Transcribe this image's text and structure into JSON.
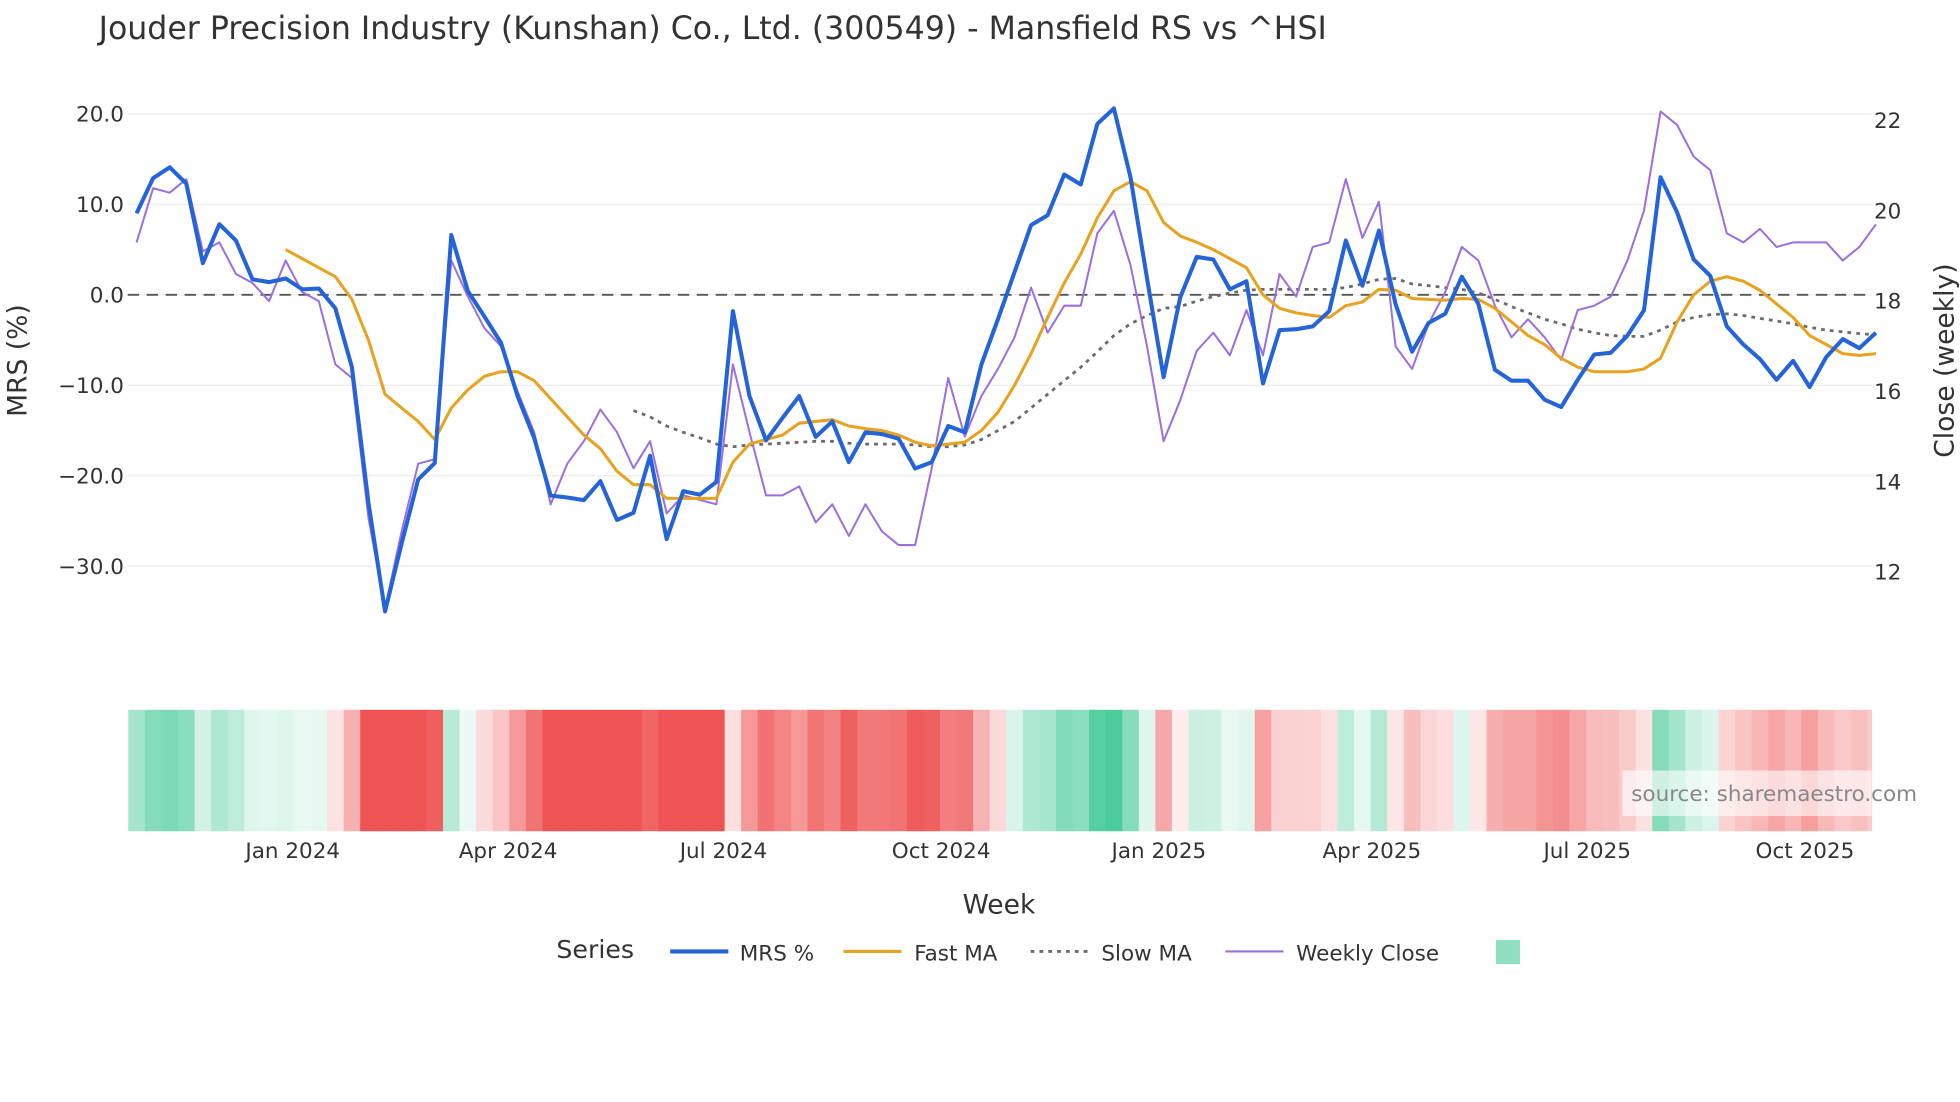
{
  "chart_data": {
    "type": "line",
    "title": "Jouder Precision Industry (Kunshan) Co., Ltd. (300549) - Mansfield RS vs ^HSI",
    "xlabel": "Week",
    "ylabel": "MRS (%)",
    "y2label": "Close (weekly)",
    "x_start": "2023-10-27",
    "x_frequency": "weekly",
    "x_ticks": [
      "Jan 2024",
      "Apr 2024",
      "Jul 2024",
      "Oct 2024",
      "Jan 2025",
      "Apr 2025",
      "Jul 2025",
      "Oct 2025"
    ],
    "x_tick_dates": [
      "2024-01-01",
      "2024-04-01",
      "2024-07-01",
      "2024-10-01",
      "2025-01-01",
      "2025-04-01",
      "2025-07-01",
      "2025-10-01"
    ],
    "ylim": [
      -35,
      20
    ],
    "y_ticks": [
      20,
      10,
      0,
      -10,
      -20,
      -30
    ],
    "y_tick_labels": [
      "20.0",
      "10.0",
      "0.0",
      "−10.0",
      "−20.0",
      "−30.0"
    ],
    "y2lim": [
      11,
      22.2
    ],
    "y2_ticks": [
      22,
      20,
      18,
      16,
      14,
      12
    ],
    "y2_tick_labels": [
      "22",
      "20",
      "18",
      "16",
      "14",
      "12"
    ],
    "zero_line": 0,
    "legend_title": "Series",
    "legend_position": "bottom-center",
    "source_note": "source: sharemaestro.com",
    "series": [
      {
        "name": "MRS %",
        "axis": "left",
        "color": "#2563d9",
        "start_index": 0,
        "values": [
          9.0,
          12.9,
          14.1,
          12.3,
          3.5,
          7.8,
          6.0,
          1.7,
          1.4,
          1.8,
          0.6,
          0.7,
          -1.5,
          -8,
          -23,
          -35,
          -27.5,
          -20.4,
          -18.6,
          6.6,
          0.4,
          -2.4,
          -5.3,
          -11.2,
          -15.8,
          -22.2,
          -22.4,
          -22.7,
          -20.6,
          -24.9,
          -24.1,
          -17.8,
          -27,
          -21.7,
          -22.1,
          -20.7,
          -1.8,
          -11.2,
          -16.1,
          -13.6,
          -11.2,
          -15.7,
          -14,
          -18.5,
          -15.2,
          -15.4,
          -15.9,
          -19.2,
          -18.5,
          -14.5,
          -15.2,
          -7.7,
          -2.7,
          2.5,
          7.7,
          8.8,
          13.3,
          12.2,
          18.9,
          20.6,
          13,
          1.8,
          -9.1,
          -0.3,
          4.2,
          3.9,
          0.6,
          1.5,
          -9.8,
          -3.9,
          -3.8,
          -3.5,
          -1.8,
          6,
          1,
          7.1,
          -1,
          -6.3,
          -3.1,
          -2.1,
          2,
          -1,
          -8.3,
          -9.5,
          -9.5,
          -11.6,
          -12.4,
          -9.4,
          -6.6,
          -6.4,
          -4.5,
          -1.7,
          13,
          9.1,
          3.9,
          2.1,
          -3.5,
          -5.5,
          -7.1,
          -9.4,
          -7.3,
          -10.2,
          -6.9,
          -4.9,
          -5.9,
          -4.2
        ]
      },
      {
        "name": "Fast MA",
        "axis": "left",
        "color": "#e8a21f",
        "start_index": 9,
        "values": [
          5.0,
          4.0,
          3.0,
          2.0,
          -0.5,
          -5,
          -11,
          -12.5,
          -14,
          -16,
          -12.5,
          -10.5,
          -9,
          -8.5,
          -8.5,
          -9.5,
          -11.5,
          -13.5,
          -15.5,
          -17,
          -19.5,
          -21,
          -21,
          -22.5,
          -22.5,
          -22.5,
          -22.5,
          -18.5,
          -16.5,
          -16,
          -15.5,
          -14.2,
          -14,
          -13.8,
          -14.5,
          -14.8,
          -15,
          -15.5,
          -16.3,
          -16.7,
          -16.5,
          -16.3,
          -15,
          -13,
          -10,
          -6.5,
          -2.5,
          1.3,
          4.5,
          8.5,
          11.5,
          12.5,
          11.5,
          8,
          6.5,
          5.8,
          5,
          4,
          3,
          0,
          -1.5,
          -2,
          -2.3,
          -2.5,
          -1.2,
          -0.8,
          0.6,
          0.5,
          -0.4,
          -0.5,
          -0.6,
          -0.4,
          -0.5,
          -1.5,
          -3,
          -4.5,
          -5.5,
          -7,
          -8,
          -8.5,
          -8.5,
          -8.5,
          -8.2,
          -7,
          -3,
          0,
          1.5,
          2,
          1.5,
          0.5,
          -1,
          -2.5,
          -4.5,
          -5.5,
          -6.5,
          -6.7,
          -6.5
        ]
      },
      {
        "name": "Slow MA",
        "axis": "left",
        "color": "#6b6b6b",
        "dash": "dot",
        "start_index": 30,
        "values": [
          -12.8,
          -13.5,
          -14.5,
          -15.2,
          -15.8,
          -16.5,
          -16.8,
          -16.6,
          -16.5,
          -16.4,
          -16.3,
          -16.2,
          -16.2,
          -16.4,
          -16.5,
          -16.5,
          -16.5,
          -16.6,
          -16.8,
          -16.8,
          -16.6,
          -16.0,
          -15,
          -14,
          -12.5,
          -11,
          -9.5,
          -8,
          -6.3,
          -4.5,
          -3.2,
          -2.3,
          -1.5,
          -1.3,
          -0.7,
          -0.2,
          0.2,
          0.5,
          0.6,
          0.6,
          0.6,
          0.6,
          0.6,
          0.8,
          1.2,
          1.7,
          1.8,
          1.2,
          1.0,
          0.8,
          0.6,
          0.2,
          -0.5,
          -1.3,
          -2,
          -2.7,
          -3.2,
          -3.8,
          -4.2,
          -4.5,
          -4.6,
          -4.6,
          -3.9,
          -3,
          -2.5,
          -2.2,
          -2.1,
          -2.3,
          -2.6,
          -2.9,
          -3.2,
          -3.6,
          -3.9,
          -4.1,
          -4.3,
          -4.4
        ]
      },
      {
        "name": "Weekly Close",
        "axis": "right",
        "color": "#9b6fe0",
        "start_index": 0,
        "values": [
          19.3,
          20.5,
          20.4,
          20.7,
          19.1,
          19.3,
          18.6,
          18.4,
          18.0,
          18.9,
          18.2,
          18.0,
          16.6,
          16.3,
          13.2,
          11.2,
          12.9,
          14.4,
          14.5,
          18.9,
          18.1,
          17.4,
          17.0,
          16.0,
          15.1,
          13.5,
          14.4,
          14.9,
          15.6,
          15.1,
          14.3,
          14.9,
          13.3,
          13.7,
          13.6,
          13.5,
          16.6,
          15.1,
          13.7,
          13.7,
          13.9,
          13.1,
          13.5,
          12.8,
          13.5,
          12.9,
          12.6,
          12.6,
          14.3,
          16.3,
          15.0,
          15.9,
          16.5,
          17.2,
          18.3,
          17.3,
          17.9,
          17.9,
          19.5,
          20.0,
          18.8,
          17.0,
          14.9,
          15.8,
          16.9,
          17.3,
          16.8,
          17.8,
          16.8,
          18.6,
          18.1,
          19.2,
          19.3,
          20.7,
          19.4,
          20.2,
          17.0,
          16.5,
          17.5,
          18.2,
          19.2,
          18.9,
          17.9,
          17.2,
          17.6,
          17.2,
          16.7,
          17.8,
          17.9,
          18.1,
          18.9,
          20.0,
          22.2,
          21.9,
          21.2,
          20.9,
          19.5,
          19.3,
          19.6,
          19.2,
          19.3,
          19.3,
          19.3,
          18.9,
          19.2,
          19.7
        ]
      }
    ],
    "heat_strip": {
      "source_series": "MRS %",
      "positive_color": "#4ccc9b",
      "negative_color": "#ee5454"
    }
  }
}
